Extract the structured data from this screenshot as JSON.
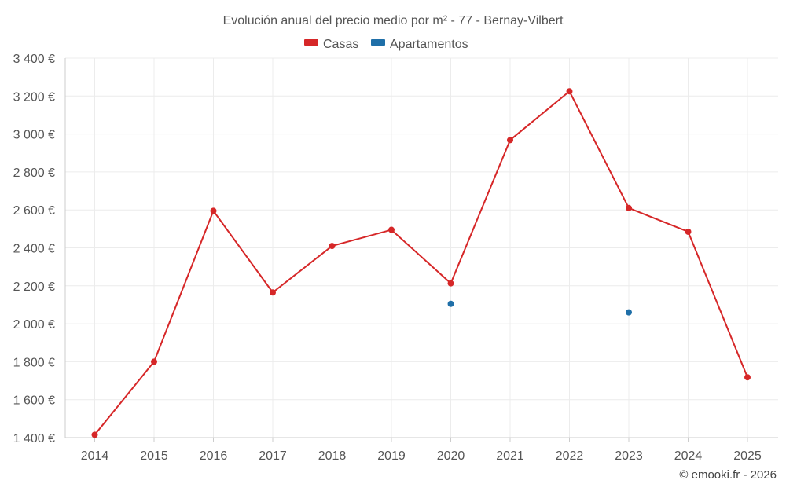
{
  "chart_data": {
    "type": "line",
    "title": "Evolución anual del precio medio por m² - 77 - Bernay-Vilbert",
    "categories": [
      "2014",
      "2015",
      "2016",
      "2017",
      "2018",
      "2019",
      "2020",
      "2021",
      "2022",
      "2023",
      "2024",
      "2025"
    ],
    "series": [
      {
        "name": "Casas",
        "color": "#d62728",
        "values": [
          1415,
          1800,
          2595,
          2165,
          2410,
          2495,
          2213,
          2968,
          3225,
          2610,
          2485,
          1718
        ]
      },
      {
        "name": "Apartamentos",
        "color": "#1f6fa8",
        "values": [
          null,
          null,
          null,
          null,
          null,
          null,
          2105,
          null,
          null,
          2060,
          null,
          null
        ]
      }
    ],
    "ylim": [
      1400,
      3400
    ],
    "yticks": [
      1400,
      1600,
      1800,
      2000,
      2200,
      2400,
      2600,
      2800,
      3000,
      3200,
      3400
    ],
    "ytick_labels": [
      "1 400 €",
      "1 600 €",
      "1 800 €",
      "2 000 €",
      "2 200 €",
      "2 400 €",
      "2 600 €",
      "2 800 €",
      "3 000 €",
      "3 200 €",
      "3 400 €"
    ],
    "xlabel": "",
    "ylabel": "",
    "grid": true,
    "legend_position": "top-center"
  },
  "credit": "© emooki.fr - 2026"
}
